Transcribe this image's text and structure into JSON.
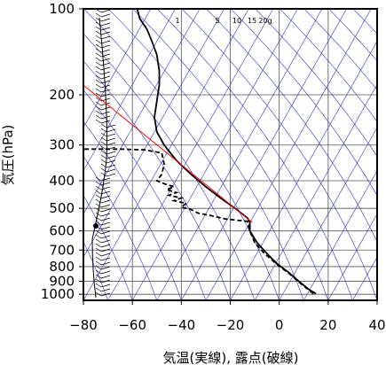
{
  "chart_data": {
    "type": "line",
    "title": "",
    "xlabel": "気温(実線), 露点(破線)",
    "ylabel": "気圧(hPa)",
    "xlim": [
      -80,
      40
    ],
    "ylim": [
      1050,
      100
    ],
    "y_scale": "log",
    "x_ticks": [
      "−80",
      "−60",
      "−40",
      "−20",
      "0",
      "20",
      "40"
    ],
    "x_tick_values": [
      -80,
      -60,
      -40,
      -20,
      0,
      20,
      40
    ],
    "y_ticks": [
      "100",
      "200",
      "300",
      "400",
      "500",
      "600",
      "700",
      "800",
      "900",
      "1000"
    ],
    "y_tick_values": [
      100,
      200,
      300,
      400,
      500,
      600,
      700,
      800,
      900,
      1000
    ],
    "mixing_ratio_labels": [
      "1",
      "5",
      "10",
      "15",
      "20g"
    ],
    "mixing_ratio_values": [
      1,
      5,
      10,
      15,
      20
    ],
    "series": [
      {
        "kind": "temperature",
        "color": "#000000",
        "style": "solid",
        "points": [
          [
            15,
            995
          ],
          [
            12,
            960
          ],
          [
            8,
            900
          ],
          [
            4,
            840
          ],
          [
            -1,
            780
          ],
          [
            -5,
            720
          ],
          [
            -9,
            660
          ],
          [
            -12,
            600
          ],
          [
            -12,
            560
          ],
          [
            -13,
            540
          ],
          [
            -18,
            500
          ],
          [
            -24,
            460
          ],
          [
            -30,
            420
          ],
          [
            -36,
            380
          ],
          [
            -42,
            340
          ],
          [
            -47,
            300
          ],
          [
            -50,
            270
          ],
          [
            -51,
            240
          ],
          [
            -50,
            210
          ],
          [
            -49,
            185
          ],
          [
            -49,
            165
          ],
          [
            -50,
            145
          ],
          [
            -52,
            130
          ],
          [
            -54,
            118
          ],
          [
            -57,
            108
          ],
          [
            -58,
            100
          ]
        ]
      },
      {
        "kind": "dewpoint",
        "color": "#000000",
        "style": "dashed",
        "points": [
          [
            14,
            995
          ],
          [
            12,
            965
          ],
          [
            8,
            905
          ],
          [
            4,
            845
          ],
          [
            -1,
            785
          ],
          [
            -6,
            720
          ],
          [
            -10,
            660
          ],
          [
            -12,
            600
          ],
          [
            -13,
            555
          ],
          [
            -22,
            545
          ],
          [
            -28,
            530
          ],
          [
            -33,
            520
          ],
          [
            -36,
            505
          ],
          [
            -40,
            495
          ],
          [
            -38,
            480
          ],
          [
            -43,
            470
          ],
          [
            -40,
            460
          ],
          [
            -45,
            450
          ],
          [
            -42,
            440
          ],
          [
            -46,
            430
          ],
          [
            -43,
            420
          ],
          [
            -47,
            410
          ],
          [
            -50,
            400
          ],
          [
            -48,
            380
          ],
          [
            -47,
            350
          ],
          [
            -48,
            320
          ],
          [
            -55,
            312
          ],
          [
            -65,
            310
          ],
          [
            -80,
            310
          ]
        ]
      },
      {
        "kind": "reference",
        "color": "#ff0000",
        "style": "solid",
        "points": [
          [
            -11,
            560
          ],
          [
            -80,
            185
          ]
        ]
      }
    ],
    "wind_profile": {
      "color": "#000000",
      "note": "wind barbs along the left edge"
    },
    "background_lines_color": "#3333cc",
    "grid": true
  }
}
